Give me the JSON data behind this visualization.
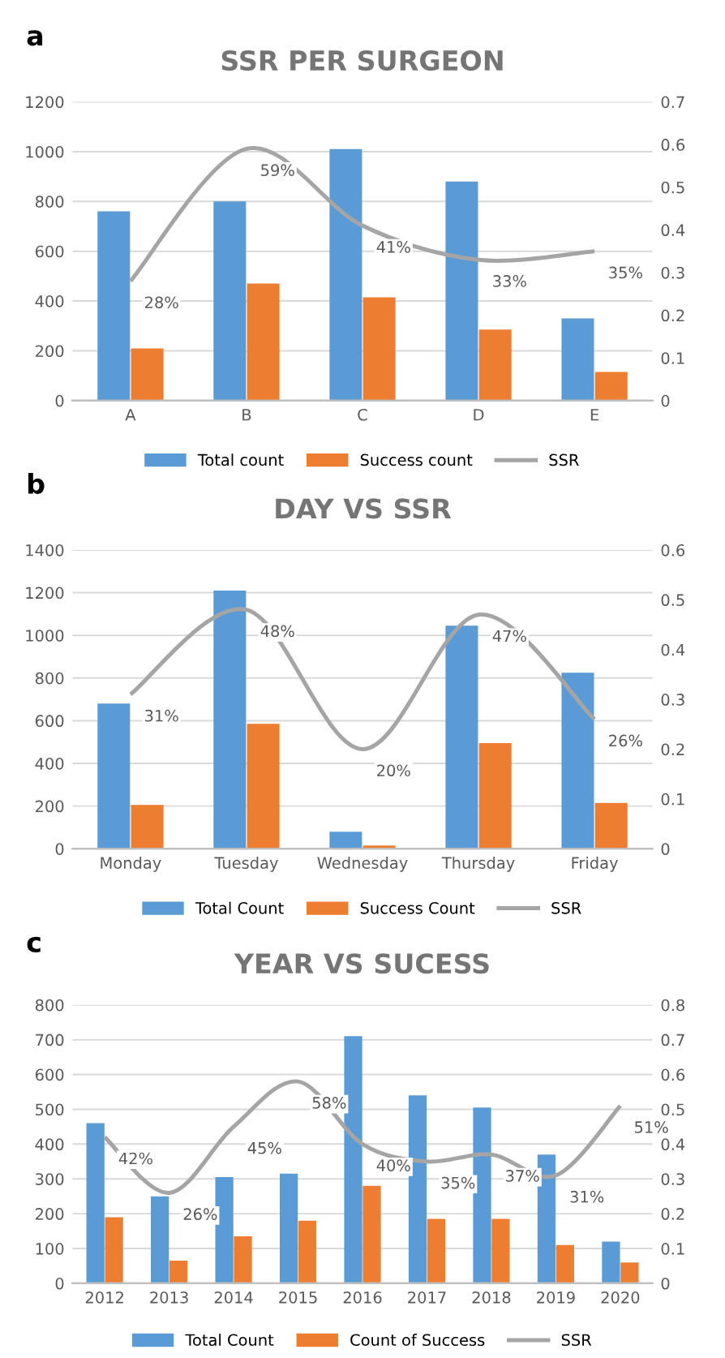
{
  "chart_data": [
    {
      "type": "bar",
      "title": "SSR PER SURGEON",
      "annotations": [
        "a"
      ],
      "categories": [
        "A",
        "B",
        "C",
        "D",
        "E"
      ],
      "series": [
        {
          "name": "Total count",
          "color": "#5b9bd5",
          "values": [
            760,
            800,
            1010,
            880,
            330
          ]
        },
        {
          "name": "Success count",
          "color": "#ed7d31",
          "values": [
            210,
            470,
            415,
            285,
            115
          ]
        },
        {
          "name": "SSR",
          "type": "line",
          "axis": "y2",
          "color": "#a5a5a5",
          "values": [
            0.28,
            0.59,
            0.41,
            0.33,
            0.35
          ],
          "value_labels": [
            "28%",
            "59%",
            "41%",
            "33%",
            "35%"
          ]
        }
      ],
      "ylim": [
        0,
        1200
      ],
      "yticks": [
        0,
        200,
        400,
        600,
        800,
        1000,
        1200
      ],
      "y2lim": [
        0,
        0.7
      ],
      "y2ticks": [
        0,
        0.1,
        0.2,
        0.3,
        0.4,
        0.5,
        0.6,
        0.7
      ],
      "grid": "y",
      "legend": "bottom",
      "marker": "none",
      "line_style": "solid"
    },
    {
      "type": "bar",
      "title": "DAY VS SSR",
      "annotations": [
        "b"
      ],
      "categories": [
        "Monday",
        "Tuesday",
        "Wednesday",
        "Thursday",
        "Friday"
      ],
      "series": [
        {
          "name": "Total Count",
          "color": "#5b9bd5",
          "values": [
            680,
            1210,
            80,
            1045,
            825
          ]
        },
        {
          "name": "Success Count",
          "color": "#ed7d31",
          "values": [
            205,
            585,
            15,
            495,
            215
          ]
        },
        {
          "name": "SSR",
          "type": "line",
          "axis": "y2",
          "color": "#a5a5a5",
          "values": [
            0.31,
            0.48,
            0.2,
            0.47,
            0.26
          ],
          "value_labels": [
            "31%",
            "48%",
            "20%",
            "47%",
            "26%"
          ]
        }
      ],
      "ylim": [
        0,
        1400
      ],
      "yticks": [
        0,
        200,
        400,
        600,
        800,
        1000,
        1200,
        1400
      ],
      "y2lim": [
        0,
        0.6
      ],
      "y2ticks": [
        0,
        0.1,
        0.2,
        0.3,
        0.4,
        0.5,
        0.6
      ],
      "grid": "y",
      "legend": "bottom",
      "marker": "none",
      "line_style": "solid"
    },
    {
      "type": "bar",
      "title": "YEAR VS SUCESS",
      "annotations": [
        "c"
      ],
      "categories": [
        "2012",
        "2013",
        "2014",
        "2015",
        "2016",
        "2017",
        "2018",
        "2019",
        "2020"
      ],
      "series": [
        {
          "name": "Total Count",
          "color": "#5b9bd5",
          "values": [
            460,
            250,
            305,
            315,
            710,
            540,
            505,
            370,
            120
          ]
        },
        {
          "name": "Count of Success",
          "color": "#ed7d31",
          "values": [
            190,
            65,
            135,
            180,
            280,
            185,
            185,
            110,
            60
          ]
        },
        {
          "name": "SSR",
          "type": "line",
          "axis": "y2",
          "color": "#a5a5a5",
          "values": [
            0.42,
            0.26,
            0.45,
            0.58,
            0.4,
            0.35,
            0.37,
            0.31,
            0.51
          ],
          "value_labels": [
            "42%",
            "26%",
            "45%",
            "58%",
            "40%",
            "35%",
            "37%",
            "31%",
            "51%"
          ]
        }
      ],
      "ylim": [
        0,
        800
      ],
      "yticks": [
        0,
        100,
        200,
        300,
        400,
        500,
        600,
        700,
        800
      ],
      "y2lim": [
        0,
        0.8
      ],
      "y2ticks": [
        0,
        0.1,
        0.2,
        0.3,
        0.4,
        0.5,
        0.6,
        0.7,
        0.8
      ],
      "grid": "y",
      "legend": "bottom",
      "marker": "none",
      "line_style": "solid"
    }
  ]
}
